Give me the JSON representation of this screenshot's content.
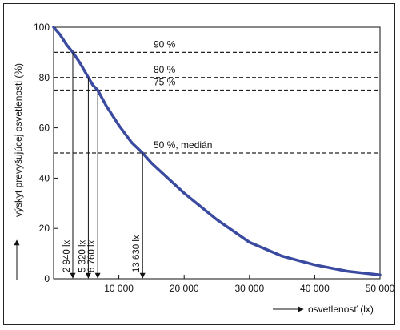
{
  "chart_data": {
    "type": "line",
    "xlabel": "osvetlenosť  (lx)",
    "ylabel": "výskyt prevyšujúcej osvetlenosti  (%)",
    "xlim": [
      0,
      50000
    ],
    "ylim": [
      0,
      100
    ],
    "x_ticks": [
      10000,
      20000,
      30000,
      40000,
      50000
    ],
    "x_tick_labels": [
      "10 000",
      "20 000",
      "30 000",
      "40 000",
      "50 000"
    ],
    "y_ticks": [
      0,
      20,
      40,
      60,
      80,
      100
    ],
    "y_tick_labels": [
      "0",
      "20",
      "40",
      "60",
      "80",
      "100"
    ],
    "grid": false,
    "series": [
      {
        "color": "#3a4aa0",
        "x": [
          0,
          1000,
          2000,
          2940,
          4000,
          5320,
          6000,
          6760,
          8000,
          10000,
          12000,
          13630,
          15000,
          20000,
          25000,
          30000,
          35000,
          40000,
          45000,
          50000
        ],
        "y": [
          100,
          97,
          93,
          90,
          86,
          80,
          77,
          75,
          69,
          61,
          54,
          50,
          46,
          34,
          23.5,
          14.5,
          9,
          5.5,
          3,
          1.5
        ]
      }
    ],
    "reference_lines": [
      {
        "y": 90,
        "label": "90 %",
        "x_value": 2940,
        "x_label": "2 940 lx"
      },
      {
        "y": 80,
        "label": "80 %",
        "x_value": 5320,
        "x_label": "5 320 lx"
      },
      {
        "y": 75,
        "label": "75 %",
        "x_value": 6760,
        "x_label": "6 760 lx"
      },
      {
        "y": 50,
        "label": "50 %, medián",
        "x_value": 13630,
        "x_label": "13 630 lx"
      }
    ]
  }
}
